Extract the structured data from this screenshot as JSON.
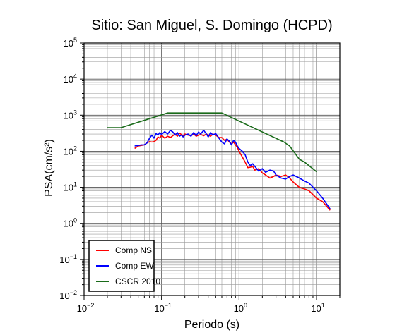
{
  "chart_data": {
    "type": "line",
    "title": "Sitio: San Miguel, S. Domingo (HCPD)",
    "xlabel": "Periodo (s)",
    "ylabel": "PSA(cm/s²)",
    "xscale": "log",
    "yscale": "log",
    "xlim": [
      0.01,
      20
    ],
    "ylim": [
      0.01,
      100000
    ],
    "x_ticks": [
      {
        "base": "10",
        "exp": "−2",
        "value": 0.01
      },
      {
        "base": "10",
        "exp": "−1",
        "value": 0.1
      },
      {
        "base": "10",
        "exp": "0",
        "value": 1
      },
      {
        "base": "10",
        "exp": "1",
        "value": 10
      }
    ],
    "y_ticks": [
      {
        "base": "10",
        "exp": "−2",
        "value": 0.01
      },
      {
        "base": "10",
        "exp": "−1",
        "value": 0.1
      },
      {
        "base": "10",
        "exp": "0",
        "value": 1
      },
      {
        "base": "10",
        "exp": "1",
        "value": 10
      },
      {
        "base": "10",
        "exp": "2",
        "value": 100
      },
      {
        "base": "10",
        "exp": "3",
        "value": 1000
      },
      {
        "base": "10",
        "exp": "4",
        "value": 10000
      },
      {
        "base": "10",
        "exp": "5",
        "value": 100000
      }
    ],
    "grid": true,
    "legend_position": "bottom-left",
    "series": [
      {
        "name": "Comp NS",
        "color": "#ff0000",
        "points": [
          [
            0.045,
            120
          ],
          [
            0.05,
            140
          ],
          [
            0.055,
            145
          ],
          [
            0.06,
            150
          ],
          [
            0.065,
            170
          ],
          [
            0.07,
            185
          ],
          [
            0.075,
            180
          ],
          [
            0.08,
            185
          ],
          [
            0.085,
            200
          ],
          [
            0.09,
            250
          ],
          [
            0.095,
            230
          ],
          [
            0.1,
            280
          ],
          [
            0.11,
            230
          ],
          [
            0.12,
            260
          ],
          [
            0.13,
            240
          ],
          [
            0.14,
            270
          ],
          [
            0.15,
            300
          ],
          [
            0.16,
            260
          ],
          [
            0.17,
            320
          ],
          [
            0.18,
            290
          ],
          [
            0.19,
            270
          ],
          [
            0.2,
            300
          ],
          [
            0.22,
            280
          ],
          [
            0.24,
            270
          ],
          [
            0.26,
            300
          ],
          [
            0.28,
            260
          ],
          [
            0.3,
            280
          ],
          [
            0.32,
            290
          ],
          [
            0.35,
            270
          ],
          [
            0.38,
            300
          ],
          [
            0.4,
            280
          ],
          [
            0.43,
            260
          ],
          [
            0.46,
            300
          ],
          [
            0.5,
            280
          ],
          [
            0.55,
            240
          ],
          [
            0.6,
            240
          ],
          [
            0.65,
            200
          ],
          [
            0.7,
            215
          ],
          [
            0.75,
            180
          ],
          [
            0.8,
            160
          ],
          [
            0.85,
            180
          ],
          [
            0.9,
            150
          ],
          [
            0.95,
            130
          ],
          [
            1.0,
            100
          ],
          [
            1.1,
            70
          ],
          [
            1.2,
            50
          ],
          [
            1.3,
            35
          ],
          [
            1.4,
            36
          ],
          [
            1.5,
            38
          ],
          [
            1.6,
            30
          ],
          [
            1.8,
            33
          ],
          [
            2.0,
            25
          ],
          [
            2.2,
            22
          ],
          [
            2.5,
            18
          ],
          [
            2.8,
            20
          ],
          [
            3.0,
            22
          ],
          [
            3.5,
            20
          ],
          [
            4.0,
            22
          ],
          [
            4.5,
            18
          ],
          [
            5.0,
            14
          ],
          [
            6.0,
            10
          ],
          [
            7.0,
            9
          ],
          [
            8.0,
            8
          ],
          [
            10.0,
            5
          ],
          [
            12.0,
            4
          ],
          [
            15.0,
            2.3
          ]
        ]
      },
      {
        "name": "Comp EW",
        "color": "#0000ff",
        "points": [
          [
            0.045,
            140
          ],
          [
            0.05,
            145
          ],
          [
            0.055,
            150
          ],
          [
            0.06,
            150
          ],
          [
            0.065,
            170
          ],
          [
            0.07,
            230
          ],
          [
            0.075,
            280
          ],
          [
            0.08,
            230
          ],
          [
            0.085,
            310
          ],
          [
            0.09,
            280
          ],
          [
            0.095,
            330
          ],
          [
            0.1,
            290
          ],
          [
            0.11,
            350
          ],
          [
            0.12,
            300
          ],
          [
            0.13,
            380
          ],
          [
            0.14,
            340
          ],
          [
            0.15,
            280
          ],
          [
            0.16,
            330
          ],
          [
            0.17,
            260
          ],
          [
            0.18,
            280
          ],
          [
            0.19,
            250
          ],
          [
            0.2,
            280
          ],
          [
            0.22,
            300
          ],
          [
            0.24,
            260
          ],
          [
            0.26,
            330
          ],
          [
            0.28,
            270
          ],
          [
            0.3,
            340
          ],
          [
            0.32,
            300
          ],
          [
            0.35,
            380
          ],
          [
            0.38,
            300
          ],
          [
            0.4,
            250
          ],
          [
            0.43,
            330
          ],
          [
            0.46,
            280
          ],
          [
            0.5,
            310
          ],
          [
            0.55,
            230
          ],
          [
            0.6,
            180
          ],
          [
            0.65,
            160
          ],
          [
            0.7,
            220
          ],
          [
            0.75,
            190
          ],
          [
            0.8,
            150
          ],
          [
            0.85,
            200
          ],
          [
            0.9,
            180
          ],
          [
            0.95,
            140
          ],
          [
            1.0,
            120
          ],
          [
            1.1,
            100
          ],
          [
            1.2,
            80
          ],
          [
            1.3,
            50
          ],
          [
            1.4,
            40
          ],
          [
            1.5,
            45
          ],
          [
            1.6,
            38
          ],
          [
            1.8,
            28
          ],
          [
            2.0,
            33
          ],
          [
            2.2,
            26
          ],
          [
            2.5,
            30
          ],
          [
            2.8,
            28
          ],
          [
            3.0,
            22
          ],
          [
            3.5,
            18
          ],
          [
            4.0,
            17
          ],
          [
            4.5,
            20
          ],
          [
            5.0,
            22
          ],
          [
            6.0,
            18
          ],
          [
            7.0,
            15
          ],
          [
            8.0,
            13
          ],
          [
            10.0,
            8
          ],
          [
            12.0,
            5
          ],
          [
            15.0,
            2.5
          ]
        ]
      },
      {
        "name": "CSCR 2010",
        "color": "#1a6b1a",
        "points": [
          [
            0.02,
            450
          ],
          [
            0.03,
            450
          ],
          [
            0.12,
            1150
          ],
          [
            0.6,
            1150
          ],
          [
            3.8,
            180
          ],
          [
            4.5,
            140
          ],
          [
            6.0,
            60
          ],
          [
            7.0,
            50
          ],
          [
            10.0,
            27
          ]
        ]
      }
    ]
  }
}
